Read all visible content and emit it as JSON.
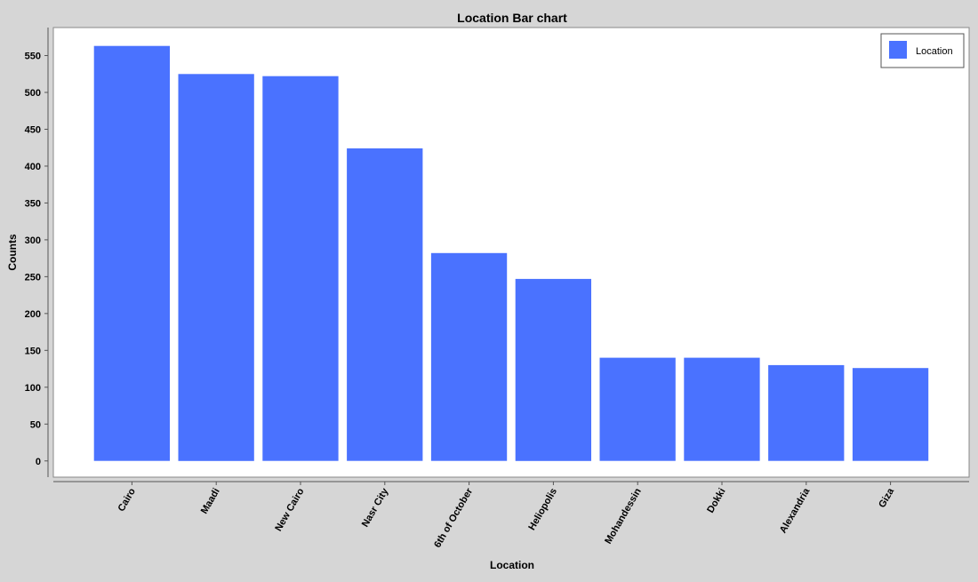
{
  "chart_data": {
    "type": "bar",
    "title": "Location Bar chart",
    "xlabel": "Location",
    "ylabel": "Counts",
    "categories": [
      "Cairo",
      "Maadi",
      "New Cairo",
      "Nasr City",
      "6th of October",
      "Heliopolis",
      "Mohandessin",
      "Dokki",
      "Alexandria",
      "Giza"
    ],
    "series": [
      {
        "name": "Location",
        "values": [
          563,
          525,
          522,
          424,
          282,
          247,
          140,
          140,
          130,
          126
        ]
      }
    ],
    "ylim": [
      -22,
      588
    ],
    "yticks": [
      0,
      50,
      100,
      150,
      200,
      250,
      300,
      350,
      400,
      450,
      500,
      550
    ],
    "grid": false,
    "legend_position": "top-right",
    "colors": {
      "bar": "#4a72ff",
      "background": "#d6d6d6",
      "plot_background": "#ffffff",
      "axis": "#555555",
      "text": "#000000"
    }
  }
}
